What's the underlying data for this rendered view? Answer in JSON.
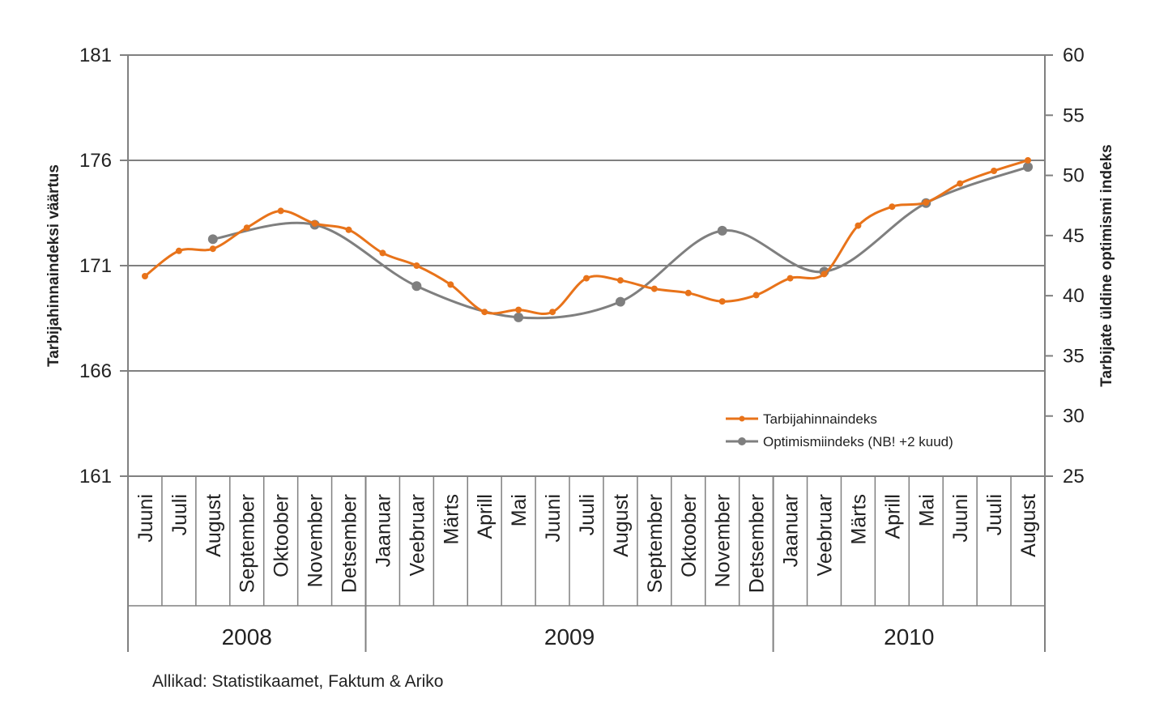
{
  "colors": {
    "cpi": "#e8731a",
    "optimism": "#7f7f7f",
    "grid": "#808080"
  },
  "source": "Allikad: Statistikaamet, Faktum & Ariko",
  "chart_data": {
    "type": "line",
    "ylabel": "Tarbijahinnaindeksi väärtus",
    "y2label": "Tarbijate üldine optimismi indeks",
    "ylim": [
      161,
      181
    ],
    "y2lim": [
      25,
      60
    ],
    "yticks": [
      181,
      176,
      171,
      166,
      161
    ],
    "y2ticks": [
      60,
      55,
      50,
      45,
      40,
      35,
      30,
      25
    ],
    "grid": true,
    "legend_position": "bottom-right",
    "categories": [
      "Juuni",
      "Juuli",
      "August",
      "September",
      "Oktoober",
      "November",
      "Detsember",
      "Jaanuar",
      "Veebruar",
      "Märts",
      "Aprill",
      "Mai",
      "Juuni",
      "Juuli",
      "August",
      "September",
      "Oktoober",
      "November",
      "Detsember",
      "Jaanuar",
      "Veebruar",
      "Märts",
      "Aprill",
      "Mai",
      "Juuni",
      "Juuli",
      "August"
    ],
    "years": [
      {
        "label": "2008",
        "start": 0,
        "end": 6
      },
      {
        "label": "2009",
        "start": 7,
        "end": 18
      },
      {
        "label": "2010",
        "start": 19,
        "end": 26
      }
    ],
    "series": [
      {
        "name": "Tarbijahinnaindeks",
        "axis": "left",
        "color": "#e8731a",
        "values": [
          170.5,
          171.7,
          171.8,
          172.8,
          173.6,
          173.0,
          172.7,
          171.6,
          171.0,
          170.1,
          168.8,
          168.9,
          168.8,
          170.4,
          170.3,
          169.9,
          169.7,
          169.3,
          169.6,
          170.4,
          170.6,
          172.9,
          173.8,
          174.0,
          174.9,
          175.5,
          176.0
        ]
      },
      {
        "name": "Optimismiindeks (NB! +2 kuud)",
        "axis": "right",
        "color": "#7f7f7f",
        "values": [
          null,
          null,
          44.7,
          null,
          null,
          45.9,
          null,
          null,
          40.8,
          null,
          null,
          38.2,
          null,
          null,
          39.5,
          null,
          null,
          45.4,
          null,
          null,
          42.0,
          null,
          null,
          47.7,
          null,
          null,
          50.7
        ]
      }
    ]
  }
}
